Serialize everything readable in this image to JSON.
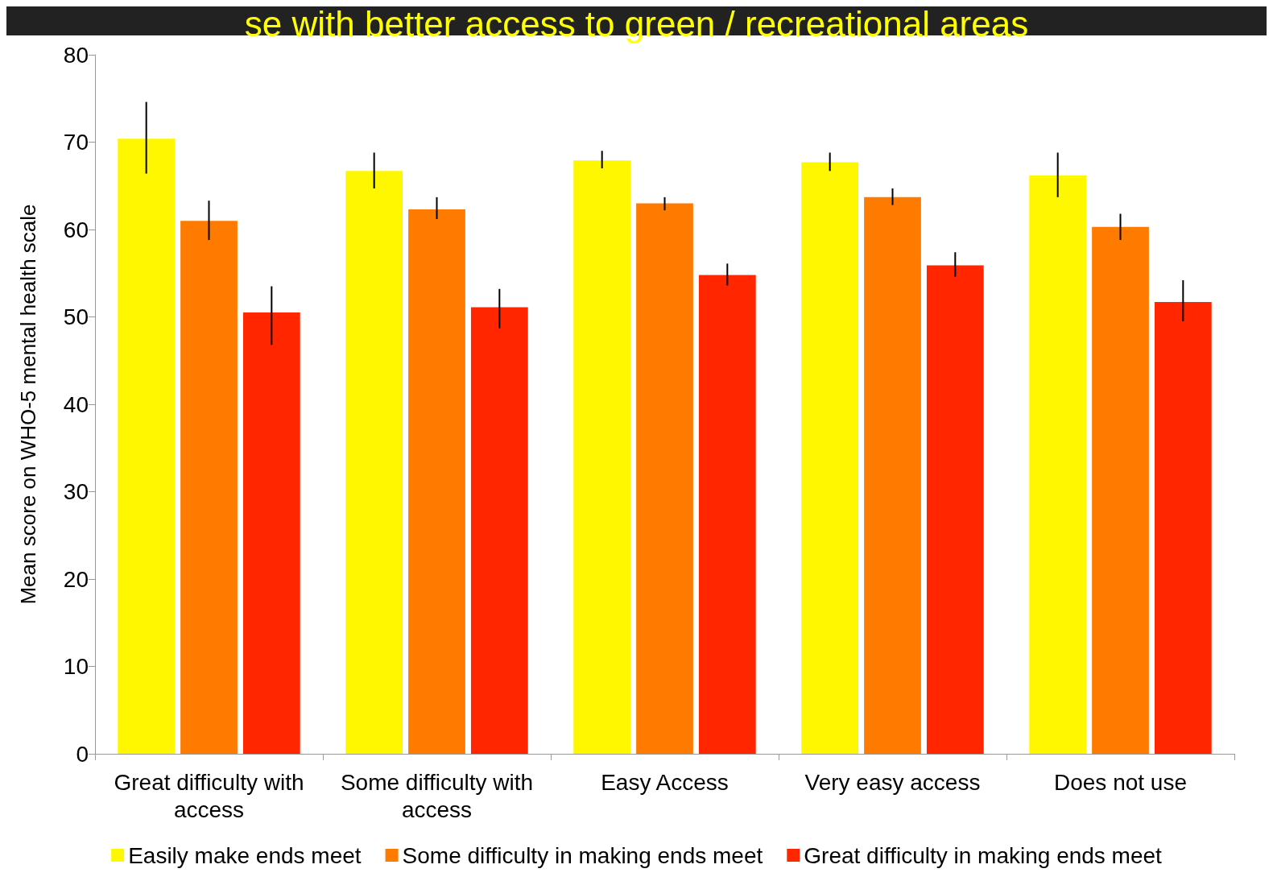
{
  "chart_data": {
    "type": "bar",
    "title": "se with better access to green / recreational areas",
    "ylabel": "Mean score on WHO-5 mental health scale",
    "categories": [
      "Great difficulty with access",
      "Some difficulty with access",
      "Easy Access",
      "Very easy access",
      "Does not use"
    ],
    "series": [
      {
        "name": "Easily make ends meet",
        "color": "#fff700",
        "values": [
          70.4,
          66.7,
          67.9,
          67.7,
          66.2
        ],
        "errors": [
          [
            66.4,
            74.6
          ],
          [
            64.7,
            68.8
          ],
          [
            67.0,
            69.0
          ],
          [
            66.7,
            68.8
          ],
          [
            63.7,
            68.8
          ]
        ]
      },
      {
        "name": "Some difficulty in making ends meet",
        "color": "#ff7b00",
        "values": [
          61.0,
          62.3,
          63.0,
          63.7,
          60.3
        ],
        "errors": [
          [
            58.8,
            63.3
          ],
          [
            61.2,
            63.7
          ],
          [
            62.2,
            63.7
          ],
          [
            62.8,
            64.7
          ],
          [
            58.8,
            61.8
          ]
        ]
      },
      {
        "name": "Great difficulty in making ends meet",
        "color": "#ff2600",
        "values": [
          50.5,
          51.1,
          54.8,
          55.9,
          51.7
        ],
        "errors": [
          [
            46.8,
            53.5
          ],
          [
            48.7,
            53.2
          ],
          [
            53.6,
            56.1
          ],
          [
            54.6,
            57.4
          ],
          [
            49.5,
            54.2
          ]
        ]
      }
    ],
    "ylim": [
      0,
      80
    ],
    "yticks": [
      0,
      10,
      20,
      30,
      40,
      50,
      60,
      70,
      80
    ],
    "grid": false,
    "legend": "bottom"
  }
}
